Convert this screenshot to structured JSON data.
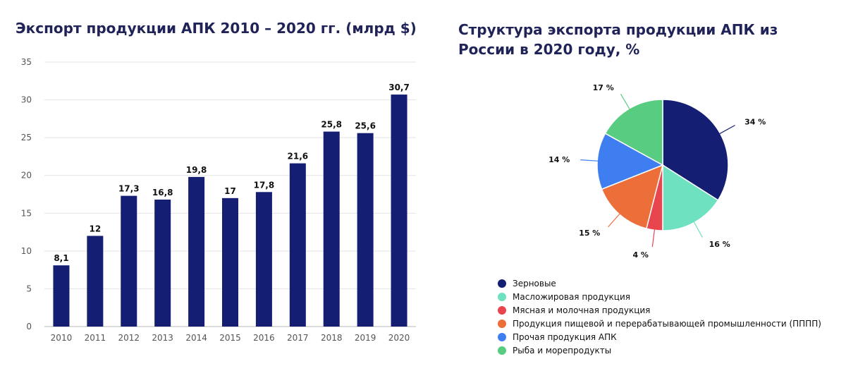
{
  "bar_title": "Экспорт продукции АПК 2010 – 2020 гг. (млрд $)",
  "pie_title": "Структура экспорта продукции АПК из России в 2020 году, %",
  "chart_data": [
    {
      "type": "bar",
      "title": "Экспорт продукции АПК 2010 – 2020 гг. (млрд $)",
      "categories": [
        "2010",
        "2011",
        "2012",
        "2013",
        "2014",
        "2015",
        "2016",
        "2017",
        "2018",
        "2019",
        "2020"
      ],
      "values": [
        8.1,
        12,
        17.3,
        16.8,
        19.8,
        17,
        17.8,
        21.6,
        25.8,
        25.6,
        30.7
      ],
      "value_labels": [
        "8,1",
        "12",
        "17,3",
        "16,8",
        "19,8",
        "17",
        "17,8",
        "21,6",
        "25,8",
        "25,6",
        "30,7"
      ],
      "yticks": [
        "0",
        "5",
        "10",
        "15",
        "20",
        "25",
        "30",
        "35"
      ],
      "ylim": [
        0,
        35
      ],
      "color": "#141e72",
      "grid": true
    },
    {
      "type": "pie",
      "title": "Структура экспорта продукции АПК из России в 2020 году, %",
      "slices": [
        {
          "name": "Зерновые",
          "value": 34,
          "label": "34 %",
          "color": "#141e72"
        },
        {
          "name": "Масложировая продукция",
          "value": 16,
          "label": "16 %",
          "color": "#6ee2c0"
        },
        {
          "name": "Мясная и молочная продукция",
          "value": 4,
          "label": "4 %",
          "color": "#e8454f"
        },
        {
          "name": "Продукция пищевой и перерабатывающей промышленности (ПППП)",
          "value": 15,
          "label": "15 %",
          "color": "#ec6f3a"
        },
        {
          "name": "Прочая продукция АПК",
          "value": 14,
          "label": "14 %",
          "color": "#3f7ef0"
        },
        {
          "name": "Рыба и морепродукты",
          "value": 17,
          "label": "17 %",
          "color": "#58cc80"
        }
      ],
      "legend_position": "bottom-left"
    }
  ]
}
